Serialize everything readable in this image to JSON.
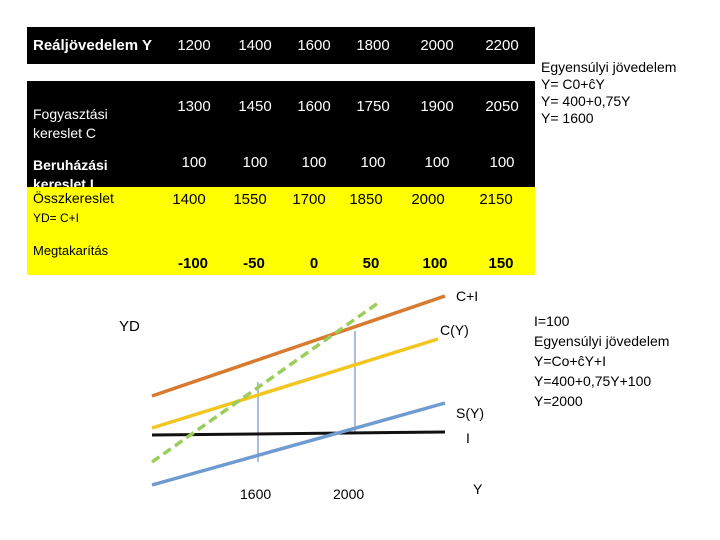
{
  "table": {
    "header": {
      "label": "Reáljövedelem Y",
      "values": [
        "1200",
        "1400",
        "1600",
        "1800",
        "2000",
        "2200"
      ]
    },
    "consumption": {
      "label_line1": "Fogyasztási",
      "label_line2": "kereslet C",
      "values": [
        "1300",
        "1450",
        "1600",
        "1750",
        "1900",
        "2050"
      ]
    },
    "investment": {
      "label_line1": "Beruházási",
      "label_line2": "kereslet I",
      "values": [
        "100",
        "100",
        "100",
        "100",
        "100",
        "100"
      ]
    },
    "aggregate": {
      "label_line1": "Összkereslet",
      "label_line2": "YD= C+I",
      "values": [
        "1400",
        "1550",
        "1700",
        "1850",
        "2000",
        "2150"
      ]
    },
    "savings": {
      "label": "Megtakarítás",
      "values": [
        "-100",
        "-50",
        "0",
        "50",
        "100",
        "150"
      ]
    }
  },
  "note_top": {
    "line1": "Egyensúlyi jövedelem",
    "line2": "Y= C0+ĉY",
    "line3": "Y= 400+0,75Y",
    "line4": "Y= 1600"
  },
  "note_bottom": {
    "line1": "I=100",
    "line2": "Egyensúlyi jövedelem",
    "line3": "Y=Co+ĉY+I",
    "line4": "Y=400+0,75Y+100",
    "line5": "Y=2000"
  },
  "graph": {
    "y_axis_label": "YD",
    "x_axis_label": "Y",
    "label_cplusi": "C+I",
    "label_c": "C(Y)",
    "label_s": "S(Y)",
    "label_i": "I",
    "tick_1600": "1600",
    "tick_2000": "2000"
  },
  "colors": {
    "c_plus_i": "#d87a30",
    "c": "#f2c51f",
    "savings": "#6f9bd1",
    "investment": "#111111",
    "diagonal": "#9acd5a",
    "guide": "#7a9cc6",
    "table_dark": "#000000",
    "table_yellow": "#ffff00"
  }
}
